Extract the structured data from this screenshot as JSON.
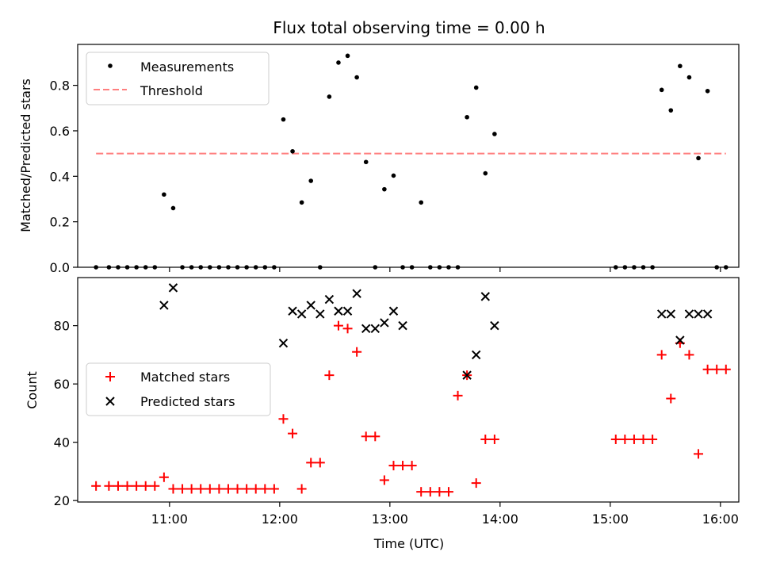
{
  "chart_data": [
    {
      "type": "scatter",
      "title": "Flux total observing time = 0.00 h",
      "ylabel": "Matched/Predicted stars",
      "xlabel": "",
      "x_is_time": true,
      "xlim": [
        "10:10",
        "16:10"
      ],
      "ylim": [
        0,
        0.98
      ],
      "yticks": [
        0.0,
        0.2,
        0.4,
        0.6,
        0.8
      ],
      "ytick_labels": [
        "0.0",
        "0.2",
        "0.4",
        "0.6",
        "0.8"
      ],
      "xticks": [
        "11:00",
        "12:00",
        "13:00",
        "14:00",
        "15:00",
        "16:00"
      ],
      "show_xtick_labels": false,
      "legend": {
        "placement": "top-left",
        "entries": [
          "Measurements",
          "Threshold"
        ]
      },
      "colors": {
        "points": "#000000",
        "threshold": "#ff7f7f"
      },
      "series": [
        {
          "name": "Measurements",
          "marker": "dot",
          "x": [
            "10:20",
            "10:27",
            "10:32",
            "10:37",
            "10:42",
            "10:47",
            "10:52",
            "10:57",
            "11:02",
            "11:07",
            "11:12",
            "11:17",
            "11:22",
            "11:27",
            "11:32",
            "11:37",
            "11:42",
            "11:47",
            "11:52",
            "11:57",
            "12:02",
            "12:07",
            "12:12",
            "12:17",
            "12:22",
            "12:27",
            "12:32",
            "12:37",
            "12:42",
            "12:47",
            "12:52",
            "12:57",
            "13:02",
            "13:07",
            "13:12",
            "13:17",
            "13:22",
            "13:27",
            "13:32",
            "13:37",
            "13:42",
            "13:47",
            "13:52",
            "13:57",
            "15:03",
            "15:08",
            "15:13",
            "15:18",
            "15:23",
            "15:28",
            "15:33",
            "15:38",
            "15:43",
            "15:48",
            "15:53",
            "15:58",
            "16:03"
          ],
          "y": [
            0.0,
            0.0,
            0.0,
            0.0,
            0.0,
            0.0,
            0.0,
            0.32,
            0.26,
            0.0,
            0.0,
            0.0,
            0.0,
            0.0,
            0.0,
            0.0,
            0.0,
            0.0,
            0.0,
            0.0,
            0.65,
            0.51,
            0.285,
            0.38,
            0.0,
            0.75,
            0.9,
            0.93,
            0.835,
            0.463,
            0.0,
            0.343,
            0.403,
            0.0,
            0.0,
            0.285,
            0.0,
            0.0,
            0.0,
            0.0,
            0.66,
            0.79,
            0.413,
            0.586,
            0.0,
            0.0,
            0.0,
            0.0,
            0.0,
            0.78,
            0.69,
            0.885,
            0.835,
            0.48,
            0.775,
            0.0,
            0.0
          ]
        },
        {
          "name": "Threshold",
          "marker": "dashed-line",
          "x": [
            "10:20",
            "16:03"
          ],
          "y": [
            0.5,
            0.5
          ]
        }
      ]
    },
    {
      "type": "scatter",
      "title": "",
      "xlabel": "Time (UTC)",
      "ylabel": "Count",
      "x_is_time": true,
      "xlim": [
        "10:10",
        "16:10"
      ],
      "ylim": [
        19.5,
        96.5
      ],
      "yticks": [
        20,
        40,
        60,
        80
      ],
      "ytick_labels": [
        "20",
        "40",
        "60",
        "80"
      ],
      "xticks": [
        "11:00",
        "12:00",
        "13:00",
        "14:00",
        "15:00",
        "16:00"
      ],
      "xtick_labels": [
        "11:00",
        "12:00",
        "13:00",
        "14:00",
        "15:00",
        "16:00"
      ],
      "legend": {
        "placement": "center-left",
        "entries": [
          "Matched stars",
          "Predicted stars"
        ]
      },
      "colors": {
        "matched": "#ff0000",
        "predicted": "#000000"
      },
      "series": [
        {
          "name": "Matched stars",
          "marker": "plus",
          "x": [
            "10:20",
            "10:27",
            "10:32",
            "10:37",
            "10:42",
            "10:47",
            "10:52",
            "10:57",
            "11:02",
            "11:07",
            "11:12",
            "11:17",
            "11:22",
            "11:27",
            "11:32",
            "11:37",
            "11:42",
            "11:47",
            "11:52",
            "11:57",
            "12:02",
            "12:07",
            "12:12",
            "12:17",
            "12:22",
            "12:27",
            "12:32",
            "12:37",
            "12:42",
            "12:47",
            "12:52",
            "12:57",
            "13:02",
            "13:07",
            "13:12",
            "13:17",
            "13:22",
            "13:27",
            "13:32",
            "13:37",
            "13:42",
            "13:47",
            "13:52",
            "13:57",
            "15:03",
            "15:08",
            "15:13",
            "15:18",
            "15:23",
            "15:28",
            "15:33",
            "15:38",
            "15:43",
            "15:48",
            "15:53",
            "15:58",
            "16:03"
          ],
          "y": [
            25,
            25,
            25,
            25,
            25,
            25,
            25,
            28,
            24,
            24,
            24,
            24,
            24,
            24,
            24,
            24,
            24,
            24,
            24,
            24,
            48,
            43,
            24,
            33,
            33,
            63,
            80,
            79,
            71,
            42,
            42,
            27,
            32,
            32,
            32,
            23,
            23,
            23,
            23,
            56,
            63,
            26,
            41,
            41,
            41,
            41,
            41,
            41,
            41,
            70,
            55,
            74,
            70,
            36,
            65,
            65,
            65
          ]
        },
        {
          "name": "Predicted stars",
          "marker": "x",
          "x": [
            "10:57",
            "11:02",
            "12:02",
            "12:07",
            "12:12",
            "12:17",
            "12:22",
            "12:27",
            "12:32",
            "12:37",
            "12:42",
            "12:47",
            "12:52",
            "12:57",
            "13:02",
            "13:07",
            "13:42",
            "13:47",
            "13:52",
            "13:57",
            "15:28",
            "15:33",
            "15:38",
            "15:43",
            "15:48",
            "15:53"
          ],
          "y": [
            87,
            93,
            74,
            85,
            84,
            87,
            84,
            89,
            85,
            85,
            91,
            79,
            79,
            81,
            85,
            80,
            63,
            70,
            90,
            80,
            84,
            84,
            75,
            84,
            84,
            84
          ]
        }
      ]
    }
  ]
}
